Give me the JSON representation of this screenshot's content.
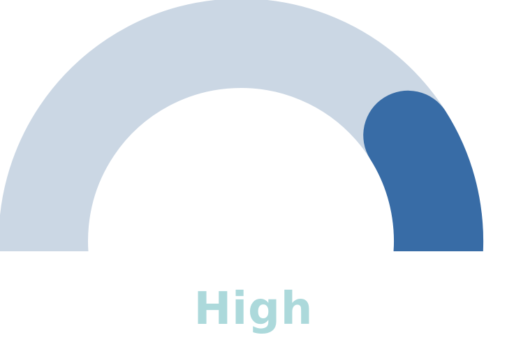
{
  "gauge": {
    "level_label": "High",
    "filled_fraction": 0.22,
    "colors": {
      "track": "#cbd7e4",
      "fill": "#386ca6",
      "label": "#acd9db"
    }
  }
}
